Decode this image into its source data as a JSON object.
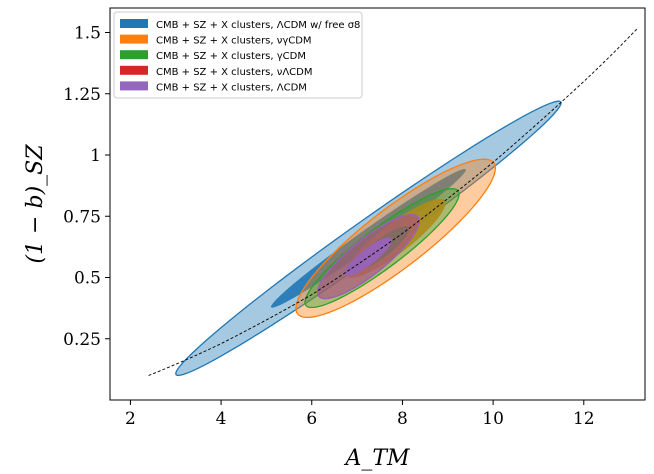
{
  "chart_data": {
    "type": "contour",
    "xlabel": "A_TM",
    "ylabel": "(1 − b)_SZ",
    "xlim": [
      1.55,
      13.35
    ],
    "ylim": [
      0.0,
      1.6
    ],
    "xticks": [
      2,
      4,
      6,
      8,
      10,
      12
    ],
    "yticks": [
      0.25,
      0.5,
      0.75,
      1,
      1.25,
      1.5
    ],
    "ytick_labels": [
      "0.25",
      "0.5",
      "0.75",
      "1",
      "1.25",
      "1.5"
    ],
    "grid": false,
    "legend_position": "upper-left",
    "series": [
      {
        "name": "CMB + SZ + X clusters, ΛCDM w/ free σ8",
        "color": "#1f77b4",
        "center": [
          7.25,
          0.66
        ],
        "outer": {
          "semi_major": 4.25,
          "semi_minor": 0.09,
          "angle_deg": 41
        },
        "inner": {
          "semi_major": 2.15,
          "semi_minor": 0.045,
          "angle_deg": 41
        }
      },
      {
        "name": "CMB + SZ + X clusters, νγCDM",
        "color": "#ff7f0e",
        "center": [
          7.85,
          0.66
        ],
        "outer": {
          "semi_major": 2.2,
          "semi_minor": 0.15,
          "angle_deg": 38
        },
        "inner": {
          "semi_major": 1.1,
          "semi_minor": 0.075,
          "angle_deg": 38
        }
      },
      {
        "name": "CMB + SZ + X clusters, γCDM",
        "color": "#2ca02c",
        "center": [
          7.55,
          0.62
        ],
        "outer": {
          "semi_major": 1.7,
          "semi_minor": 0.1,
          "angle_deg": 33
        },
        "inner": {
          "semi_major": 0.6,
          "semi_minor": 0.045,
          "angle_deg": 33
        }
      },
      {
        "name": "CMB + SZ + X clusters, νΛCDM",
        "color": "#d62728",
        "center": [
          7.25,
          0.585
        ],
        "outer": {
          "semi_major": 1.12,
          "semi_minor": 0.09,
          "angle_deg": 30
        },
        "inner": {
          "semi_major": 0.52,
          "semi_minor": 0.04,
          "angle_deg": 30
        }
      },
      {
        "name": "CMB + SZ + X clusters, ΛCDM",
        "color": "#9467bd",
        "center": [
          7.25,
          0.585
        ],
        "outer": {
          "semi_major": 1.12,
          "semi_minor": 0.09,
          "angle_deg": 30
        },
        "inner": {
          "semi_major": 0.52,
          "semi_minor": 0.04,
          "angle_deg": 30
        }
      }
    ],
    "curve": {
      "style": "dashed",
      "color": "#000000",
      "points": [
        [
          2.4,
          0.1
        ],
        [
          4.0,
          0.23
        ],
        [
          6.0,
          0.43
        ],
        [
          8.0,
          0.68
        ],
        [
          10.0,
          0.97
        ],
        [
          12.0,
          1.3
        ],
        [
          13.2,
          1.52
        ]
      ]
    }
  }
}
